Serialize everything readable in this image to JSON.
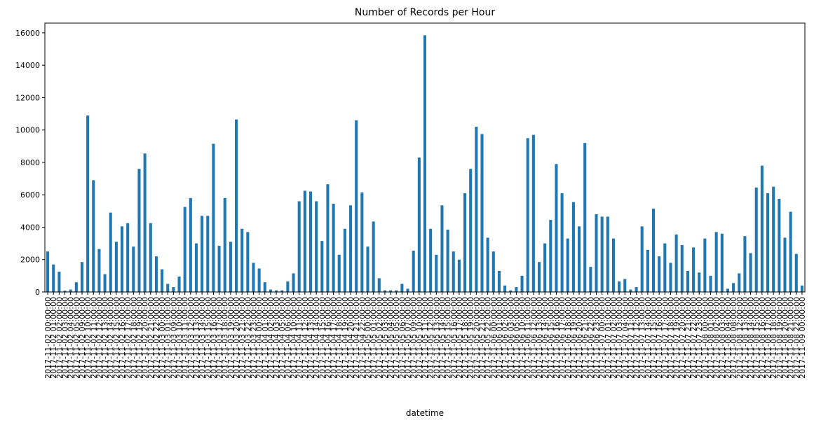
{
  "chart_data": {
    "type": "bar",
    "title": "Number of Records per Hour",
    "x_label": "datetime",
    "color": "#1f77b4",
    "categories": [
      "2017-11-02 00:00:00",
      "2017-11-02 01:00:00",
      "2017-11-02 02:00:00",
      "2017-11-02 03:00:00",
      "2017-11-02 04:00:00",
      "2017-11-02 05:00:00",
      "2017-11-02 09:00:00",
      "2017-11-02 10:00:00",
      "2017-11-02 11:00:00",
      "2017-11-02 12:00:00",
      "2017-11-02 13:00:00",
      "2017-11-02 14:00:00",
      "2017-11-02 15:00:00",
      "2017-11-02 16:00:00",
      "2017-11-02 17:00:00",
      "2017-11-02 18:00:00",
      "2017-11-02 19:00:00",
      "2017-11-02 20:00:00",
      "2017-11-02 21:00:00",
      "2017-11-02 22:00:00",
      "2017-11-03 00:00:00",
      "2017-11-03 01:00:00",
      "2017-11-03 09:00:00",
      "2017-11-03 10:00:00",
      "2017-11-03 11:00:00",
      "2017-11-03 12:00:00",
      "2017-11-03 13:00:00",
      "2017-11-03 14:00:00",
      "2017-11-03 15:00:00",
      "2017-11-03 16:00:00",
      "2017-11-03 17:00:00",
      "2017-11-03 18:00:00",
      "2017-11-03 19:00:00",
      "2017-11-03 20:00:00",
      "2017-11-03 21:00:00",
      "2017-11-03 22:00:00",
      "2017-11-03 23:00:00",
      "2017-11-04 00:00:00",
      "2017-11-04 01:00:00",
      "2017-11-04 02:00:00",
      "2017-11-04 03:00:00",
      "2017-11-04 05:00:00",
      "2017-11-04 06:00:00",
      "2017-11-04 10:00:00",
      "2017-11-04 11:00:00",
      "2017-11-04 12:00:00",
      "2017-11-04 13:00:00",
      "2017-11-04 14:00:00",
      "2017-11-04 15:00:00",
      "2017-11-04 16:00:00",
      "2017-11-04 17:00:00",
      "2017-11-04 18:00:00",
      "2017-11-04 19:00:00",
      "2017-11-04 20:00:00",
      "2017-11-04 21:00:00",
      "2017-11-04 22:00:00",
      "2017-11-05 00:00:00",
      "2017-11-05 01:00:00",
      "2017-11-05 02:00:00",
      "2017-11-05 03:00:00",
      "2017-11-05 04:00:00",
      "2017-11-05 05:00:00",
      "2017-11-05 06:00:00",
      "2017-11-05 07:00:00",
      "2017-11-05 09:00:00",
      "2017-11-05 10:00:00",
      "2017-11-05 11:00:00",
      "2017-11-05 12:00:00",
      "2017-11-05 13:00:00",
      "2017-11-05 14:00:00",
      "2017-11-05 15:00:00",
      "2017-11-05 16:00:00",
      "2017-11-05 17:00:00",
      "2017-11-05 18:00:00",
      "2017-11-05 19:00:00",
      "2017-11-05 20:00:00",
      "2017-11-05 21:00:00",
      "2017-11-05 22:00:00",
      "2017-11-06 00:00:00",
      "2017-11-06 01:00:00",
      "2017-11-06 02:00:00",
      "2017-11-06 03:00:00",
      "2017-11-06 05:00:00",
      "2017-11-06 10:00:00",
      "2017-11-06 11:00:00",
      "2017-11-06 12:00:00",
      "2017-11-06 13:00:00",
      "2017-11-06 14:00:00",
      "2017-11-06 15:00:00",
      "2017-11-06 16:00:00",
      "2017-11-06 17:00:00",
      "2017-11-06 18:00:00",
      "2017-11-06 19:00:00",
      "2017-11-06 20:00:00",
      "2017-11-06 21:00:00",
      "2017-11-06 22:00:00",
      "2017-11-06 23:00:00",
      "2017-11-07 00:00:00",
      "2017-11-07 01:00:00",
      "2017-11-07 02:00:00",
      "2017-11-07 03:00:00",
      "2017-11-07 04:00:00",
      "2017-11-07 11:00:00",
      "2017-11-07 12:00:00",
      "2017-11-07 13:00:00",
      "2017-11-07 14:00:00",
      "2017-11-07 15:00:00",
      "2017-11-07 16:00:00",
      "2017-11-07 17:00:00",
      "2017-11-07 18:00:00",
      "2017-11-07 19:00:00",
      "2017-11-07 20:00:00",
      "2017-11-07 21:00:00",
      "2017-11-07 22:00:00",
      "2017-11-07 23:00:00",
      "2017-11-08 00:00:00",
      "2017-11-08 01:00:00",
      "2017-11-08 02:00:00",
      "2017-11-08 03:00:00",
      "2017-11-08 04:00:00",
      "2017-11-08 08:00:00",
      "2017-11-08 12:00:00",
      "2017-11-08 13:00:00",
      "2017-11-08 14:00:00",
      "2017-11-08 15:00:00",
      "2017-11-08 16:00:00",
      "2017-11-08 17:00:00",
      "2017-11-08 18:00:00",
      "2017-11-08 19:00:00",
      "2017-11-08 20:00:00",
      "2017-11-08 21:00:00",
      "2017-11-08 22:00:00",
      "2017-11-09 00:00:00"
    ],
    "values": [
      2500,
      1700,
      1250,
      80,
      150,
      600,
      1850,
      10900,
      6900,
      2650,
      1100,
      4900,
      3100,
      4050,
      4250,
      2800,
      7600,
      8550,
      4250,
      2200,
      1400,
      500,
      300,
      950,
      5250,
      5800,
      3000,
      4700,
      4700,
      9150,
      2850,
      5800,
      3100,
      10650,
      3900,
      3700,
      1800,
      1450,
      600,
      150,
      100,
      100,
      650,
      1150,
      5600,
      6250,
      6200,
      5600,
      3150,
      6650,
      5450,
      2300,
      3900,
      5350,
      10600,
      6150,
      2800,
      4350,
      850,
      100,
      100,
      100,
      500,
      200,
      2550,
      8300,
      15850,
      3900,
      2300,
      5350,
      3850,
      2500,
      2000,
      6100,
      7600,
      10200,
      9750,
      3350,
      2500,
      1300,
      400,
      100,
      300,
      1000,
      9500,
      9700,
      1850,
      3000,
      4450,
      7900,
      6100,
      3300,
      5550,
      4050,
      9200,
      1550,
      4800,
      4650,
      4650,
      3300,
      650,
      800,
      150,
      300,
      4050,
      2600,
      5150,
      2200,
      3000,
      1800,
      3550,
      2900,
      1300,
      2750,
      1200,
      3300,
      1000,
      3700,
      3600,
      200,
      550,
      1150,
      3450,
      2400,
      6450,
      7800,
      6100,
      6500,
      5750,
      3350,
      4950,
      2350,
      400
    ],
    "ylim": [
      0,
      16600
    ],
    "yticks": [
      0,
      2000,
      4000,
      6000,
      8000,
      10000,
      12000,
      14000,
      16000
    ]
  }
}
